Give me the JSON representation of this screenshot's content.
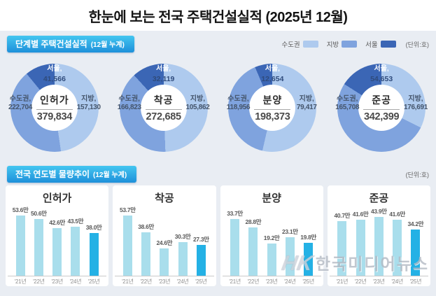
{
  "title": "한눈에 보는 전국 주택건설실적 (2025년 12월)",
  "unit_label": "(단위:호)",
  "section1": {
    "badge_title": "단계별 주택건설실적",
    "badge_suffix": "(12월 누계)"
  },
  "section2": {
    "badge_title": "전국 연도별 물량추이",
    "badge_suffix": "(12월 누계)"
  },
  "legend": [
    {
      "label": "수도권",
      "color": "#AECAEE"
    },
    {
      "label": "지방",
      "color": "#7FA3DE"
    },
    {
      "label": "서울",
      "color": "#3B66B5"
    }
  ],
  "colors": {
    "sudogwon": "#AECAEE",
    "jibang": "#7FA3DE",
    "seoul": "#3B66B5",
    "bar_normal": "#A9DEEC",
    "bar_highlight": "#24B1E5"
  },
  "watermark": {
    "mark": "HK",
    "text": "한국미디어뉴스"
  },
  "chart_data": [
    {
      "type": "pie",
      "title": "인허가",
      "total": 379834,
      "total_label": "379,834",
      "slices": [
        {
          "name": "수도권",
          "value": 222704,
          "label": "222,704"
        },
        {
          "name": "지방",
          "value": 157130,
          "label": "157,130"
        },
        {
          "name": "서울",
          "value": 41566,
          "label": "41,566"
        }
      ]
    },
    {
      "type": "pie",
      "title": "착공",
      "total": 272685,
      "total_label": "272,685",
      "slices": [
        {
          "name": "수도권",
          "value": 166823,
          "label": "166,823"
        },
        {
          "name": "지방",
          "value": 105862,
          "label": "105,862"
        },
        {
          "name": "서울",
          "value": 32119,
          "label": "32,119"
        }
      ]
    },
    {
      "type": "pie",
      "title": "분양",
      "total": 198373,
      "total_label": "198,373",
      "slices": [
        {
          "name": "수도권",
          "value": 118956,
          "label": "118,956"
        },
        {
          "name": "지방",
          "value": 79417,
          "label": "79,417"
        },
        {
          "name": "서울",
          "value": 12654,
          "label": "12,654"
        }
      ]
    },
    {
      "type": "pie",
      "title": "준공",
      "total": 342399,
      "total_label": "342,399",
      "slices": [
        {
          "name": "수도권",
          "value": 165708,
          "label": "165,708"
        },
        {
          "name": "지방",
          "value": 176691,
          "label": "176,691"
        },
        {
          "name": "서울",
          "value": 54653,
          "label": "54,653"
        }
      ]
    },
    {
      "type": "bar",
      "title": "인허가",
      "categories": [
        "'21년",
        "'22년",
        "'23년",
        "'24년",
        "'25년"
      ],
      "values": [
        53.6,
        50.6,
        42.6,
        43.5,
        38.0
      ],
      "labels": [
        "53.6만",
        "50.6만",
        "42.6만",
        "43.5만",
        "38.0만"
      ],
      "axis_max": 60,
      "highlight_index": 4
    },
    {
      "type": "bar",
      "title": "착공",
      "categories": [
        "'21년",
        "'22년",
        "'23년",
        "'24년",
        "'25년"
      ],
      "values": [
        53.7,
        38.6,
        24.6,
        30.3,
        27.3
      ],
      "labels": [
        "53.7만",
        "38.6만",
        "24.6만",
        "30.3만",
        "27.3만"
      ],
      "axis_max": 60,
      "highlight_index": 4
    },
    {
      "type": "bar",
      "title": "분양",
      "categories": [
        "'21년",
        "'22년",
        "'23년",
        "'24년",
        "'25년"
      ],
      "values": [
        33.7,
        28.8,
        19.2,
        23.1,
        19.8
      ],
      "labels": [
        "33.7만",
        "28.8만",
        "19.2만",
        "23.1만",
        "19.8만"
      ],
      "axis_max": 40,
      "highlight_index": 4
    },
    {
      "type": "bar",
      "title": "준공",
      "categories": [
        "'21년",
        "'22년",
        "'23년",
        "'24년",
        "'25년"
      ],
      "values": [
        40.7,
        41.6,
        43.9,
        41.6,
        34.2
      ],
      "labels": [
        "40.7만",
        "41.6만",
        "43.9만",
        "41.6만",
        "34.2만"
      ],
      "axis_max": 50,
      "highlight_index": 4
    }
  ]
}
